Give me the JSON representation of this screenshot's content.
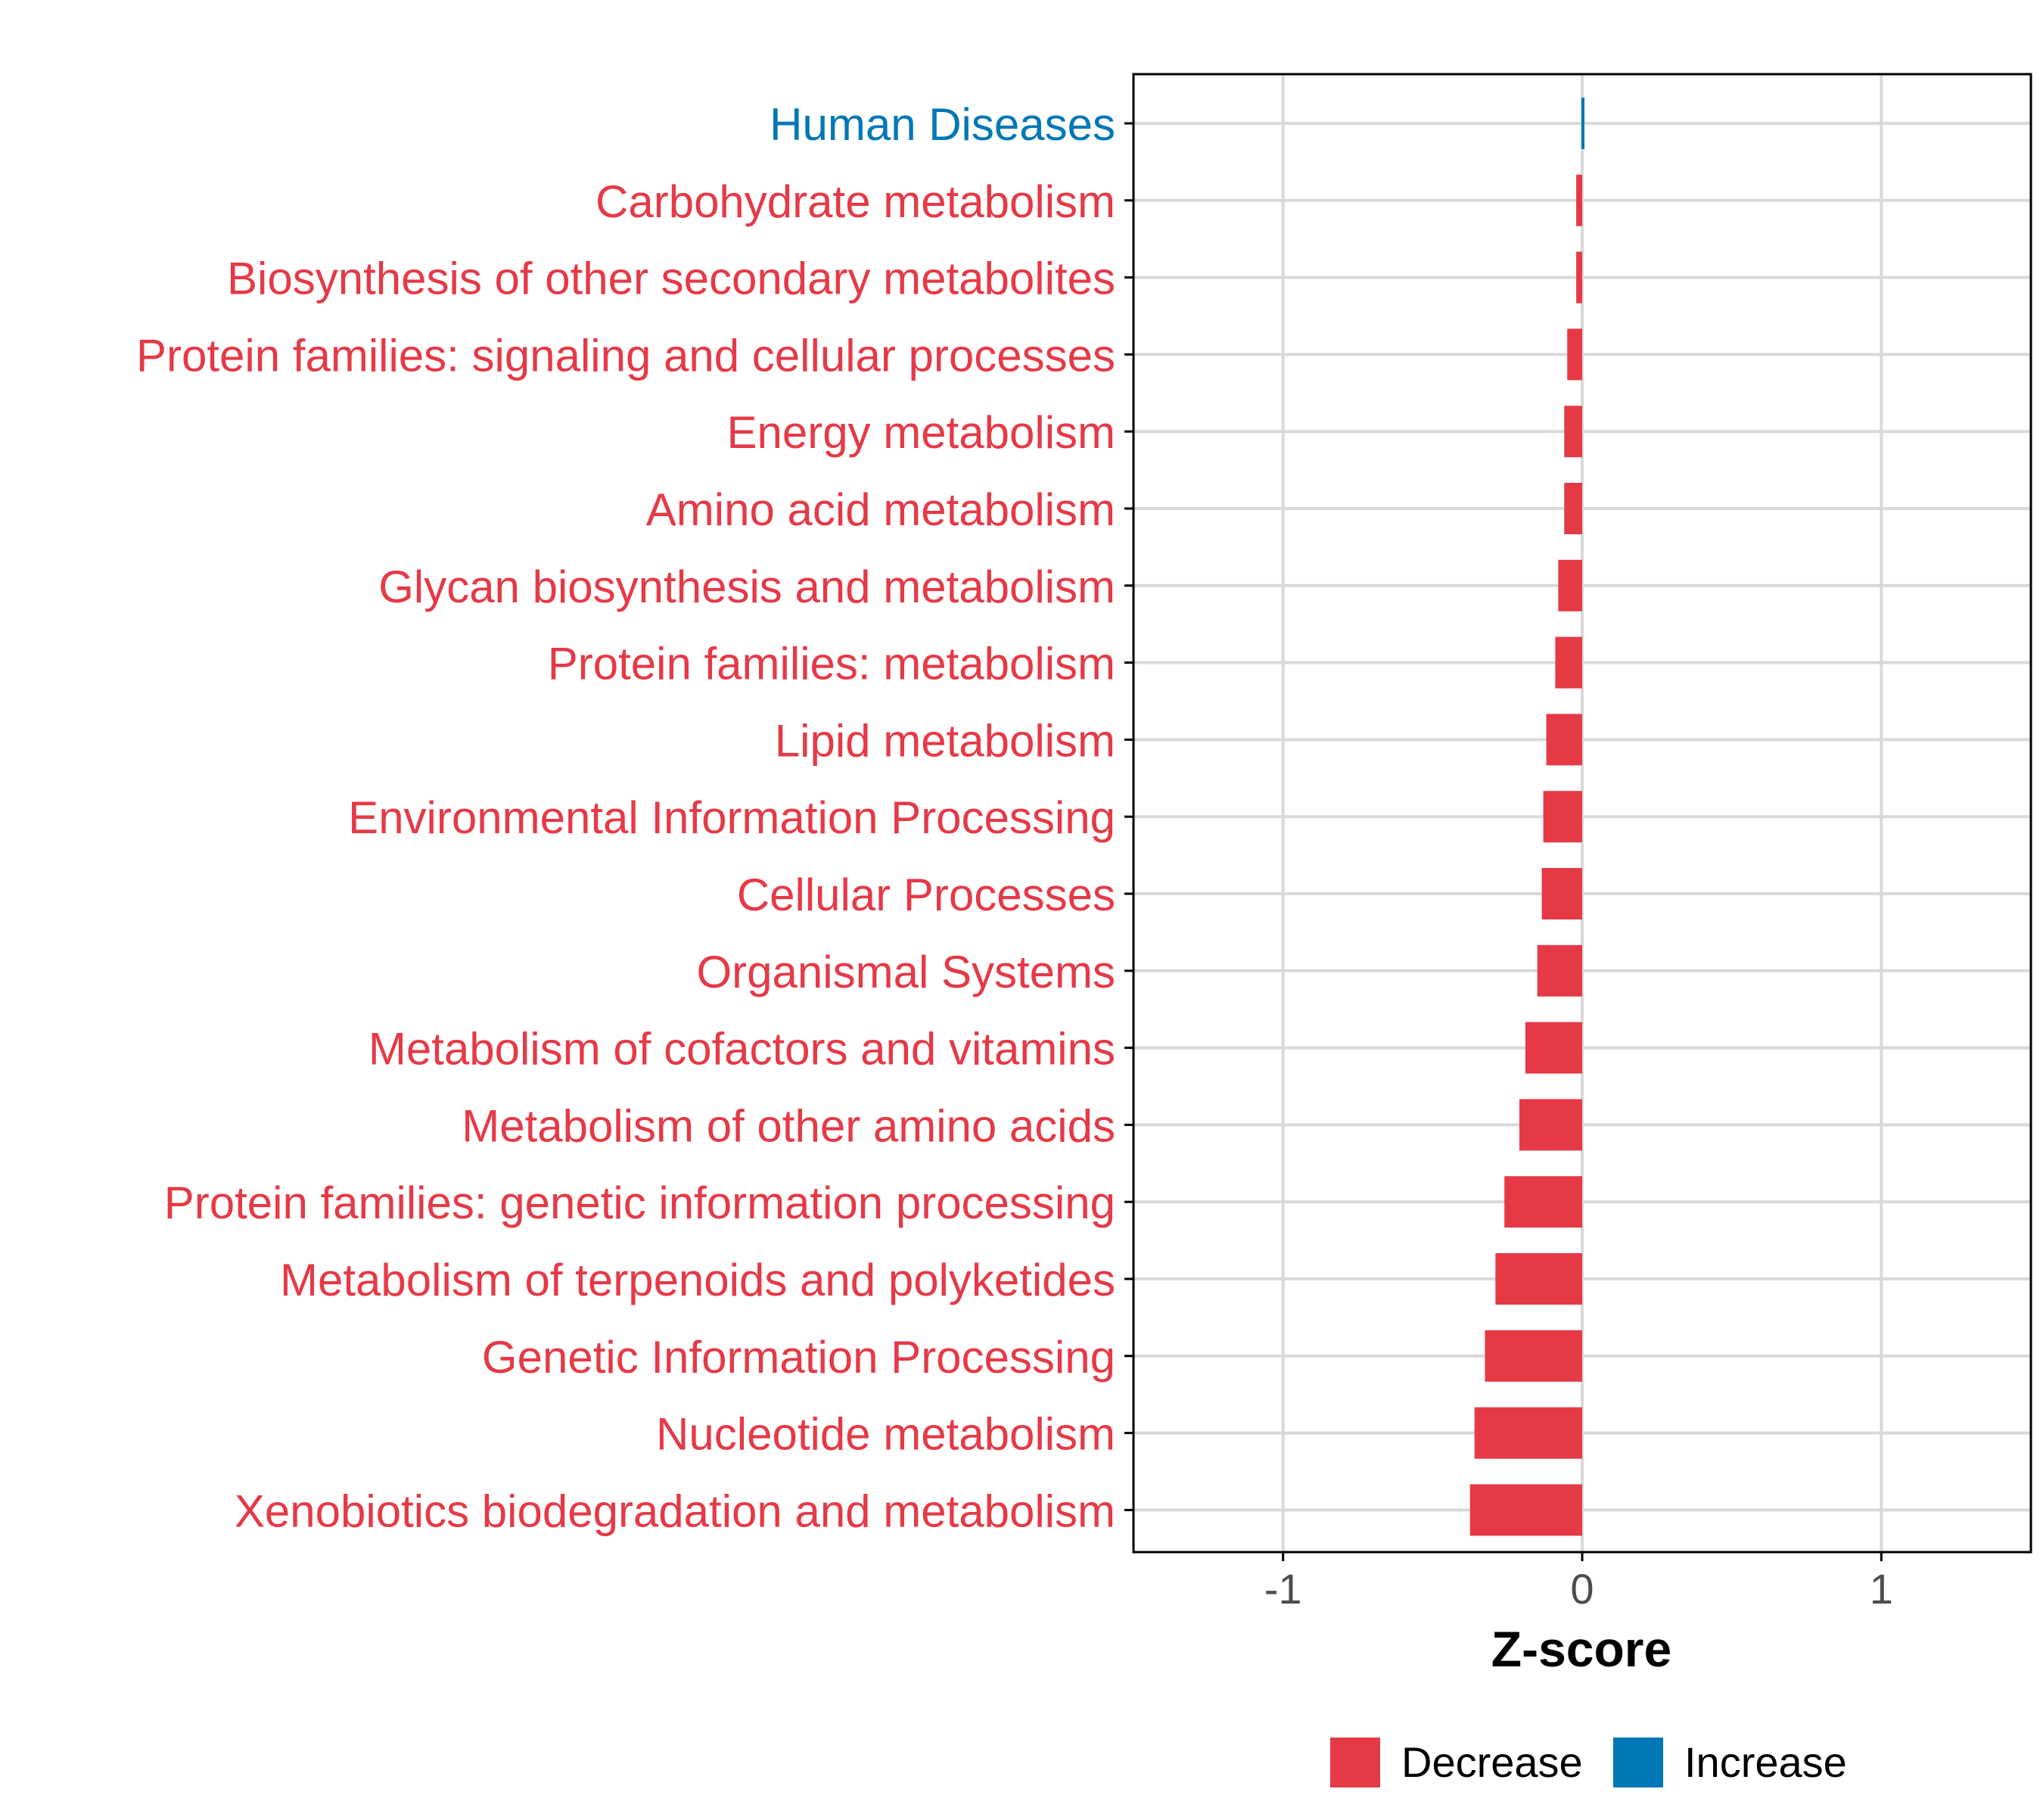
{
  "chart_data": {
    "type": "bar",
    "orientation": "horizontal",
    "title": "",
    "xlabel": "Z-score",
    "ylabel": "",
    "xlim": [
      -1.5,
      1.5
    ],
    "xticks": [
      -1,
      0,
      1
    ],
    "xtick_labels": [
      "-1",
      "0",
      "1"
    ],
    "grid": true,
    "legend_position": "bottom",
    "legend": [
      {
        "label": "Decrease",
        "color": "#e63946"
      },
      {
        "label": "Increase",
        "color": "#0077b6"
      }
    ],
    "categories": [
      "Human Diseases",
      "Carbohydrate metabolism",
      "Biosynthesis of other secondary metabolites",
      "Protein families: signaling and cellular processes",
      "Energy metabolism",
      "Amino acid metabolism",
      "Glycan biosynthesis and metabolism",
      "Protein families: metabolism",
      "Lipid metabolism",
      "Environmental Information Processing",
      "Cellular Processes",
      "Organismal Systems",
      "Metabolism of cofactors and vitamins",
      "Metabolism of other amino acids",
      "Protein families: genetic information processing",
      "Metabolism of terpenoids and polyketides",
      "Genetic Information Processing",
      "Nucleotide metabolism",
      "Xenobiotics biodegradation and metabolism"
    ],
    "values": [
      0.01,
      -0.02,
      -0.02,
      -0.05,
      -0.06,
      -0.06,
      -0.08,
      -0.09,
      -0.12,
      -0.13,
      -0.135,
      -0.15,
      -0.19,
      -0.21,
      -0.26,
      -0.29,
      -0.325,
      -0.36,
      -0.375
    ],
    "series_direction": [
      "Increase",
      "Decrease",
      "Decrease",
      "Decrease",
      "Decrease",
      "Decrease",
      "Decrease",
      "Decrease",
      "Decrease",
      "Decrease",
      "Decrease",
      "Decrease",
      "Decrease",
      "Decrease",
      "Decrease",
      "Decrease",
      "Decrease",
      "Decrease",
      "Decrease"
    ]
  },
  "colors": {
    "decrease": "#e63946",
    "increase": "#0077b6",
    "grid": "#d9d9d9",
    "axis": "#000000",
    "tick_label": "#4d4d4d"
  }
}
